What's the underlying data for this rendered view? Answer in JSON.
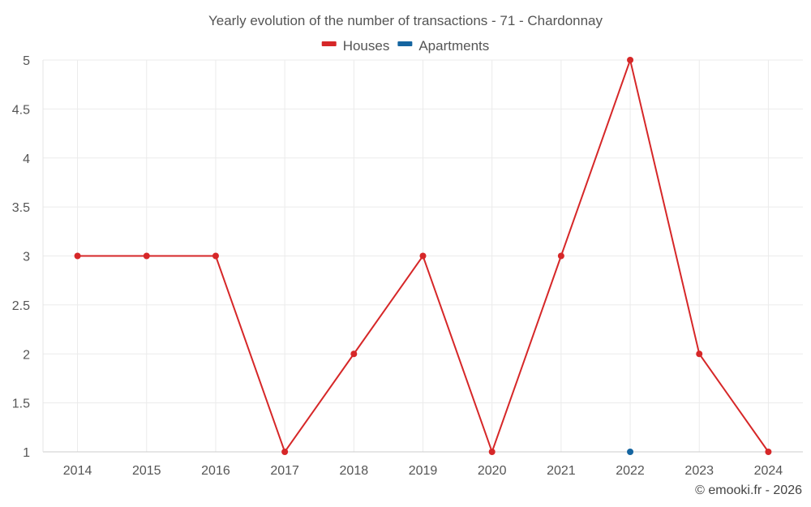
{
  "chart_data": {
    "type": "line",
    "title": "Yearly evolution of the number of transactions - 71 - Chardonnay",
    "xlabel": "",
    "ylabel": "",
    "categories": [
      "2014",
      "2015",
      "2016",
      "2017",
      "2018",
      "2019",
      "2020",
      "2021",
      "2022",
      "2023",
      "2024"
    ],
    "ylim": [
      1,
      5
    ],
    "yticks": [
      "1",
      "1.5",
      "2",
      "2.5",
      "3",
      "3.5",
      "4",
      "4.5",
      "5"
    ],
    "grid": true,
    "legend_position": "top-center",
    "series": [
      {
        "name": "Houses",
        "color": "#d62728",
        "values": [
          3,
          3,
          3,
          1,
          2,
          3,
          1,
          3,
          5,
          2,
          1
        ]
      },
      {
        "name": "Apartments",
        "color": "#1565a0",
        "values": [
          null,
          null,
          null,
          null,
          null,
          null,
          null,
          null,
          1,
          null,
          null
        ]
      }
    ]
  },
  "footer": {
    "credit": "© emooki.fr - 2026"
  }
}
